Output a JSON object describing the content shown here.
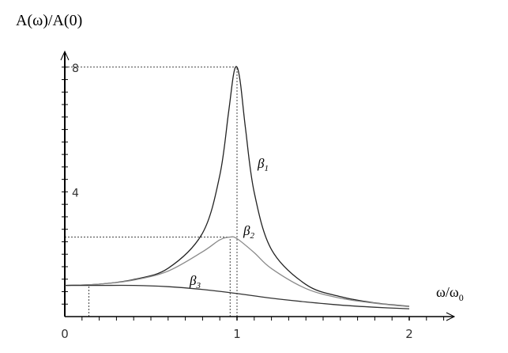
{
  "chart_data": {
    "type": "line",
    "ylabel": "A(ω)/A(0)",
    "xlabel": "ω/ω",
    "xlabel_subscript": "0",
    "xlim": [
      0,
      2.2
    ],
    "ylim": [
      0,
      8.5
    ],
    "x_ticks": [
      "0",
      "1",
      "2"
    ],
    "x_tick_values": [
      0,
      1,
      2
    ],
    "y_ticks": [
      "4",
      "8"
    ],
    "y_tick_values": [
      4,
      8
    ],
    "grid": false,
    "legend": "none",
    "series": [
      {
        "name": "β1",
        "label_main": "β",
        "label_sub": "1",
        "color": "#222222",
        "x": [
          0,
          0.2,
          0.4,
          0.6,
          0.8,
          0.9,
          0.95,
          0.98,
          1.0,
          1.02,
          1.05,
          1.1,
          1.2,
          1.4,
          1.6,
          1.8,
          2.0
        ],
        "y": [
          1.0,
          1.04,
          1.19,
          1.55,
          2.68,
          4.53,
          6.51,
          7.77,
          8.0,
          7.48,
          6.0,
          3.98,
          2.15,
          1.03,
          0.64,
          0.44,
          0.33
        ]
      },
      {
        "name": "β2",
        "label_main": "β",
        "label_sub": "2",
        "color": "#8a8a8a",
        "x": [
          0,
          0.2,
          0.4,
          0.6,
          0.8,
          0.9,
          0.96,
          1.0,
          1.1,
          1.2,
          1.4,
          1.6,
          1.8,
          2.0
        ],
        "y": [
          1.0,
          1.04,
          1.17,
          1.46,
          2.08,
          2.46,
          2.55,
          2.5,
          2.05,
          1.54,
          0.9,
          0.59,
          0.43,
          0.32
        ]
      },
      {
        "name": "β3",
        "label_main": "β",
        "label_sub": "3",
        "color": "#333333",
        "x": [
          0,
          0.2,
          0.4,
          0.6,
          0.8,
          1.0,
          1.2,
          1.4,
          1.6,
          1.8,
          2.0
        ],
        "y": [
          1.0,
          1.0,
          1.0,
          0.96,
          0.87,
          0.74,
          0.59,
          0.47,
          0.37,
          0.3,
          0.25
        ]
      }
    ],
    "reference_lines": [
      {
        "type": "horizontal",
        "y": 8,
        "x_to": 1
      },
      {
        "type": "vertical",
        "x": 1,
        "y_to": 8
      },
      {
        "type": "horizontal",
        "y": 2.55,
        "x_to": 0.96
      },
      {
        "type": "vertical",
        "x": 0.96,
        "y_to": 2.55
      },
      {
        "type": "vertical",
        "x": 0.14,
        "y_to": 1.0
      }
    ]
  }
}
